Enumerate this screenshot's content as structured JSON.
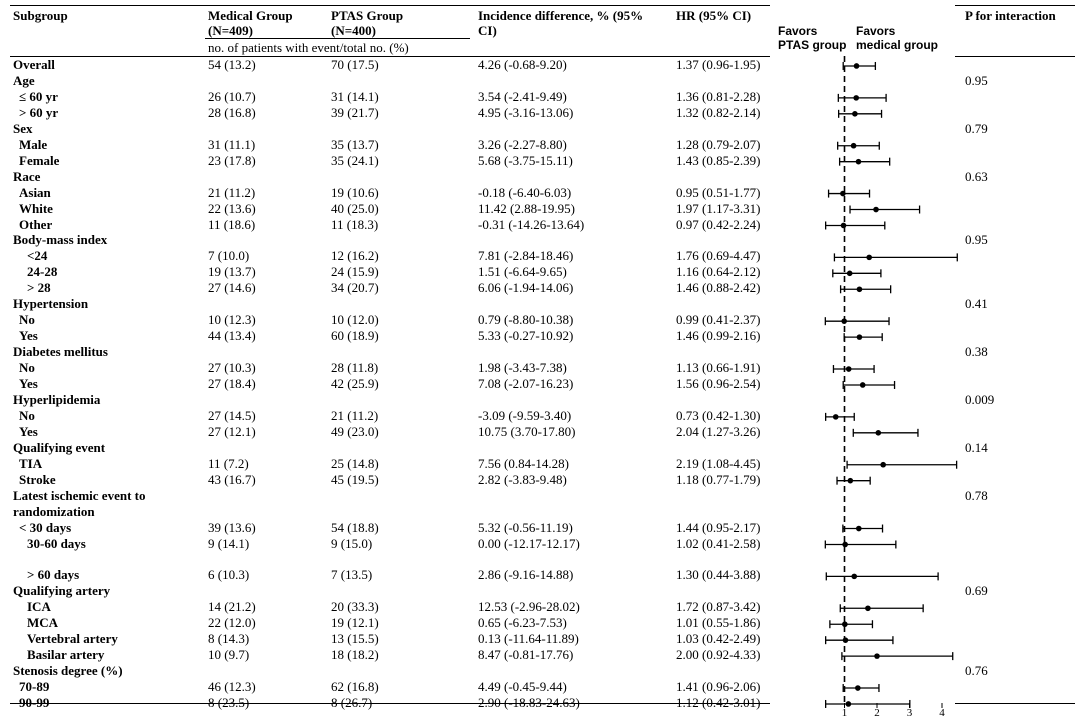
{
  "header": {
    "subgroup": "Subgroup",
    "medical": "Medical Group",
    "medical_n": "(N=409)",
    "ptas": "PTAS Group",
    "ptas_n": "(N=400)",
    "incidence_1": "Incidence difference, % (95%",
    "incidence_2": "CI)",
    "hr": "HR (95% CI)",
    "pint": "P for interaction",
    "subheader": "no. of patients with event/total no. (%)",
    "favors_ptas_1": "Favors",
    "favors_ptas_2": "PTAS group",
    "favors_med_1": "Favors",
    "favors_med_2": "medical group"
  },
  "rows": [
    {
      "label": "Overall",
      "kind": "group",
      "medical": "54 (13.2)",
      "ptas": "70 (17.5)",
      "incidence": "4.26 (-0.68-9.20)",
      "hr_text": "1.37 (0.96-1.95)",
      "pint": ""
    },
    {
      "label": "Age",
      "kind": "group",
      "medical": "",
      "ptas": "",
      "incidence": "",
      "hr_text": "",
      "pint": "0.95"
    },
    {
      "label": "≤ 60 yr",
      "kind": "sub",
      "medical": "26 (10.7)",
      "ptas": "31 (14.1)",
      "incidence": "3.54 (-2.41-9.49)",
      "hr_text": "1.36 (0.81-2.28)",
      "pint": ""
    },
    {
      "label": "> 60 yr",
      "kind": "sub",
      "medical": "28 (16.8)",
      "ptas": "39 (21.7)",
      "incidence": "4.95 (-3.16-13.06)",
      "hr_text": "1.32 (0.82-2.14)",
      "pint": ""
    },
    {
      "label": "Sex",
      "kind": "group",
      "medical": "",
      "ptas": "",
      "incidence": "",
      "hr_text": "",
      "pint": "0.79"
    },
    {
      "label": "Male",
      "kind": "sub",
      "medical": "31 (11.1)",
      "ptas": "35 (13.7)",
      "incidence": "3.26 (-2.27-8.80)",
      "hr_text": "1.28 (0.79-2.07)",
      "pint": ""
    },
    {
      "label": "Female",
      "kind": "sub",
      "medical": "23 (17.8)",
      "ptas": "35 (24.1)",
      "incidence": "5.68 (-3.75-15.11)",
      "hr_text": "1.43 (0.85-2.39)",
      "pint": ""
    },
    {
      "label": "Race",
      "kind": "group",
      "medical": "",
      "ptas": "",
      "incidence": "",
      "hr_text": "",
      "pint": "0.63"
    },
    {
      "label": "Asian",
      "kind": "sub",
      "medical": "21 (11.2)",
      "ptas": "19 (10.6)",
      "incidence": "-0.18 (-6.40-6.03)",
      "hr_text": "0.95 (0.51-1.77)",
      "pint": ""
    },
    {
      "label": "White",
      "kind": "sub",
      "medical": "22 (13.6)",
      "ptas": "40 (25.0)",
      "incidence": "11.42 (2.88-19.95)",
      "hr_text": "1.97 (1.17-3.31)",
      "pint": ""
    },
    {
      "label": "Other",
      "kind": "sub",
      "medical": "11 (18.6)",
      "ptas": "11 (18.3)",
      "incidence": "-0.31 (-14.26-13.64)",
      "hr_text": "0.97 (0.42-2.24)",
      "pint": ""
    },
    {
      "label": "Body-mass index",
      "kind": "group",
      "medical": "",
      "ptas": "",
      "incidence": "",
      "hr_text": "",
      "pint": "0.95"
    },
    {
      "label": "<24",
      "kind": "sub2",
      "medical": "7 (10.0)",
      "ptas": "12 (16.2)",
      "incidence": "7.81 (-2.84-18.46)",
      "hr_text": "1.76 (0.69-4.47)",
      "pint": ""
    },
    {
      "label": "24-28",
      "kind": "sub2",
      "medical": "19 (13.7)",
      "ptas": "24 (15.9)",
      "incidence": "1.51 (-6.64-9.65)",
      "hr_text": "1.16 (0.64-2.12)",
      "pint": ""
    },
    {
      "label": "> 28",
      "kind": "sub2",
      "medical": "27 (14.6)",
      "ptas": "34 (20.7)",
      "incidence": "6.06 (-1.94-14.06)",
      "hr_text": "1.46 (0.88-2.42)",
      "pint": ""
    },
    {
      "label": "Hypertension",
      "kind": "group",
      "medical": "",
      "ptas": "",
      "incidence": "",
      "hr_text": "",
      "pint": "0.41"
    },
    {
      "label": "No",
      "kind": "sub",
      "medical": "10 (12.3)",
      "ptas": "10 (12.0)",
      "incidence": "0.79 (-8.80-10.38)",
      "hr_text": "0.99 (0.41-2.37)",
      "pint": ""
    },
    {
      "label": "Yes",
      "kind": "sub",
      "medical": "44 (13.4)",
      "ptas": "60 (18.9)",
      "incidence": "5.33 (-0.27-10.92)",
      "hr_text": "1.46 (0.99-2.16)",
      "pint": ""
    },
    {
      "label": "Diabetes mellitus",
      "kind": "group",
      "medical": "",
      "ptas": "",
      "incidence": "",
      "hr_text": "",
      "pint": "0.38"
    },
    {
      "label": "No",
      "kind": "sub",
      "medical": "27 (10.3)",
      "ptas": "28 (11.8)",
      "incidence": "1.98 (-3.43-7.38)",
      "hr_text": "1.13 (0.66-1.91)",
      "pint": ""
    },
    {
      "label": "Yes",
      "kind": "sub",
      "medical": "27 (18.4)",
      "ptas": "42 (25.9)",
      "incidence": "7.08 (-2.07-16.23)",
      "hr_text": "1.56 (0.96-2.54)",
      "pint": ""
    },
    {
      "label": "Hyperlipidemia",
      "kind": "group",
      "medical": "",
      "ptas": "",
      "incidence": "",
      "hr_text": "",
      "pint": "0.009"
    },
    {
      "label": "No",
      "kind": "sub",
      "medical": "27 (14.5)",
      "ptas": "21 (11.2)",
      "incidence": "-3.09 (-9.59-3.40)",
      "hr_text": "0.73 (0.42-1.30)",
      "pint": ""
    },
    {
      "label": "Yes",
      "kind": "sub",
      "medical": "27 (12.1)",
      "ptas": "49 (23.0)",
      "incidence": "10.75 (3.70-17.80)",
      "hr_text": "2.04 (1.27-3.26)",
      "pint": ""
    },
    {
      "label": "Qualifying event",
      "kind": "group",
      "medical": "",
      "ptas": "",
      "incidence": "",
      "hr_text": "",
      "pint": "0.14"
    },
    {
      "label": "TIA",
      "kind": "sub",
      "medical": "11 (7.2)",
      "ptas": "25 (14.8)",
      "incidence": "7.56 (0.84-14.28)",
      "hr_text": "2.19 (1.08-4.45)",
      "pint": ""
    },
    {
      "label": "Stroke",
      "kind": "sub",
      "medical": "43 (16.7)",
      "ptas": "45 (19.5)",
      "incidence": "2.82 (-3.83-9.48)",
      "hr_text": "1.18 (0.77-1.79)",
      "pint": ""
    },
    {
      "label": "Latest ischemic event to",
      "kind": "group",
      "medical": "",
      "ptas": "",
      "incidence": "",
      "hr_text": "",
      "pint": "0.78"
    },
    {
      "label": "randomization",
      "kind": "group",
      "medical": "",
      "ptas": "",
      "incidence": "",
      "hr_text": "",
      "pint": ""
    },
    {
      "label": "< 30 days",
      "kind": "sub",
      "medical": "39 (13.6)",
      "ptas": "54 (18.8)",
      "incidence": "5.32 (-0.56-11.19)",
      "hr_text": "1.44 (0.95-2.17)",
      "pint": ""
    },
    {
      "label": "30-60 days",
      "kind": "sub2",
      "medical": "9 (14.1)",
      "ptas": "9 (15.0)",
      "incidence": "0.00 (-12.17-12.17)",
      "hr_text": "1.02 (0.41-2.58)",
      "pint": ""
    },
    {
      "label": "",
      "kind": "blank",
      "medical": "",
      "ptas": "",
      "incidence": "",
      "hr_text": "",
      "pint": ""
    },
    {
      "label": "> 60 days",
      "kind": "sub2",
      "medical": "6 (10.3)",
      "ptas": "7 (13.5)",
      "incidence": "2.86 (-9.16-14.88)",
      "hr_text": "1.30 (0.44-3.88)",
      "pint": ""
    },
    {
      "label": "Qualifying artery",
      "kind": "group",
      "medical": "",
      "ptas": "",
      "incidence": "",
      "hr_text": "",
      "pint": "0.69"
    },
    {
      "label": "ICA",
      "kind": "sub2",
      "medical": "14 (21.2)",
      "ptas": "20 (33.3)",
      "incidence": "12.53 (-2.96-28.02)",
      "hr_text": "1.72 (0.87-3.42)",
      "pint": ""
    },
    {
      "label": "MCA",
      "kind": "sub2",
      "medical": "22 (12.0)",
      "ptas": "19 (12.1)",
      "incidence": "0.65 (-6.23-7.53)",
      "hr_text": "1.01 (0.55-1.86)",
      "pint": ""
    },
    {
      "label": "Vertebral artery",
      "kind": "sub2",
      "medical": "8 (14.3)",
      "ptas": "13 (15.5)",
      "incidence": "0.13 (-11.64-11.89)",
      "hr_text": "1.03 (0.42-2.49)",
      "pint": ""
    },
    {
      "label": "Basilar artery",
      "kind": "sub2",
      "medical": "10 (9.7)",
      "ptas": "18 (18.2)",
      "incidence": "8.47 (-0.81-17.76)",
      "hr_text": "2.00 (0.92-4.33)",
      "pint": ""
    },
    {
      "label": "Stenosis degree (%)",
      "kind": "group",
      "medical": "",
      "ptas": "",
      "incidence": "",
      "hr_text": "",
      "pint": "0.76"
    },
    {
      "label": "70-89",
      "kind": "sub",
      "medical": "46 (12.3)",
      "ptas": "62 (16.8)",
      "incidence": "4.49 (-0.45-9.44)",
      "hr_text": "1.41 (0.96-2.06)",
      "pint": ""
    },
    {
      "label": "90-99",
      "kind": "sub",
      "medical": "8 (23.5)",
      "ptas": "8 (26.7)",
      "incidence": "2.90 (-18.83-24.63)",
      "hr_text": "1.12 (0.42-3.01)",
      "pint": ""
    }
  ],
  "chart_data": {
    "type": "forest",
    "reference_line": 1,
    "xlim": [
      0,
      4
    ],
    "x_ticks": [
      "1",
      "2",
      "3",
      "4"
    ],
    "left_label": "Favors PTAS group",
    "right_label": "Favors medical group",
    "points": [
      {
        "label": "Overall",
        "hr": 1.37,
        "lo": 0.96,
        "hi": 1.95
      },
      {
        "label": "≤ 60 yr",
        "hr": 1.36,
        "lo": 0.81,
        "hi": 2.28
      },
      {
        "label": "> 60 yr",
        "hr": 1.32,
        "lo": 0.82,
        "hi": 2.14
      },
      {
        "label": "Male",
        "hr": 1.28,
        "lo": 0.79,
        "hi": 2.07
      },
      {
        "label": "Female",
        "hr": 1.43,
        "lo": 0.85,
        "hi": 2.39
      },
      {
        "label": "Asian",
        "hr": 0.95,
        "lo": 0.51,
        "hi": 1.77
      },
      {
        "label": "White",
        "hr": 1.97,
        "lo": 1.17,
        "hi": 3.31
      },
      {
        "label": "Other",
        "hr": 0.97,
        "lo": 0.42,
        "hi": 2.24
      },
      {
        "label": "<24",
        "hr": 1.76,
        "lo": 0.69,
        "hi": 4.47
      },
      {
        "label": "24-28",
        "hr": 1.16,
        "lo": 0.64,
        "hi": 2.12
      },
      {
        "label": "> 28",
        "hr": 1.46,
        "lo": 0.88,
        "hi": 2.42
      },
      {
        "label": "Hypertension No",
        "hr": 0.99,
        "lo": 0.41,
        "hi": 2.37
      },
      {
        "label": "Hypertension Yes",
        "hr": 1.46,
        "lo": 0.99,
        "hi": 2.16
      },
      {
        "label": "Diabetes No",
        "hr": 1.13,
        "lo": 0.66,
        "hi": 1.91
      },
      {
        "label": "Diabetes Yes",
        "hr": 1.56,
        "lo": 0.96,
        "hi": 2.54
      },
      {
        "label": "Hyperlipidemia No",
        "hr": 0.73,
        "lo": 0.42,
        "hi": 1.3
      },
      {
        "label": "Hyperlipidemia Yes",
        "hr": 2.04,
        "lo": 1.27,
        "hi": 3.26
      },
      {
        "label": "TIA",
        "hr": 2.19,
        "lo": 1.08,
        "hi": 4.45
      },
      {
        "label": "Stroke",
        "hr": 1.18,
        "lo": 0.77,
        "hi": 1.79
      },
      {
        "label": "< 30 days",
        "hr": 1.44,
        "lo": 0.95,
        "hi": 2.17
      },
      {
        "label": "30-60 days",
        "hr": 1.02,
        "lo": 0.41,
        "hi": 2.58
      },
      {
        "label": "> 60 days",
        "hr": 1.3,
        "lo": 0.44,
        "hi": 3.88
      },
      {
        "label": "ICA",
        "hr": 1.72,
        "lo": 0.87,
        "hi": 3.42
      },
      {
        "label": "MCA",
        "hr": 1.01,
        "lo": 0.55,
        "hi": 1.86
      },
      {
        "label": "Vertebral artery",
        "hr": 1.03,
        "lo": 0.42,
        "hi": 2.49
      },
      {
        "label": "Basilar artery",
        "hr": 2.0,
        "lo": 0.92,
        "hi": 4.33
      },
      {
        "label": "70-89",
        "hr": 1.41,
        "lo": 0.96,
        "hi": 2.06
      },
      {
        "label": "90-99",
        "hr": 1.12,
        "lo": 0.42,
        "hi": 3.01
      }
    ]
  }
}
